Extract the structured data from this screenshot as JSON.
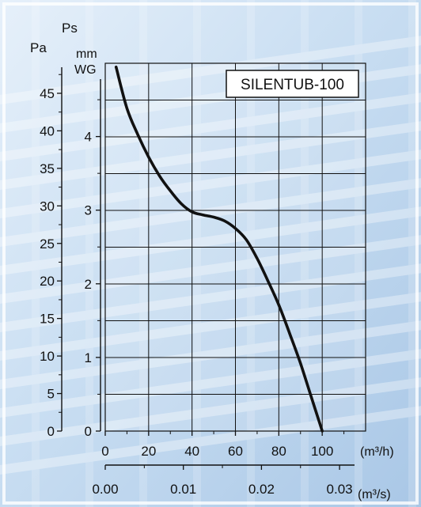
{
  "chart_data": {
    "type": "line",
    "title": "SILENTUB-100",
    "y_primary": {
      "label_top": "Ps",
      "label": "Pa",
      "ticks": [
        "0",
        "5",
        "10",
        "15",
        "20",
        "25",
        "30",
        "35",
        "40",
        "45"
      ],
      "range": [
        0,
        49
      ]
    },
    "y_secondary": {
      "label_line1": "mm",
      "label_line2": "WG",
      "ticks": [
        "0",
        "1",
        "2",
        "3",
        "4"
      ]
    },
    "x_primary": {
      "unit_label": "(m³/h)",
      "ticks": [
        "0",
        "20",
        "40",
        "60",
        "80",
        "100"
      ],
      "range": [
        0,
        120
      ]
    },
    "x_secondary": {
      "unit_label": "(m³/s)",
      "ticks": [
        "0.00",
        "0.01",
        "0.02",
        "0.03"
      ]
    },
    "series": [
      {
        "x": [
          5,
          10,
          15,
          20,
          25,
          30,
          35,
          40,
          45,
          50,
          55,
          60,
          65,
          70,
          75,
          80,
          85,
          90,
          95,
          100
        ],
        "y": [
          48.5,
          43,
          39.5,
          36.5,
          34,
          32,
          30.3,
          29.2,
          28.8,
          28.5,
          28,
          27,
          25.5,
          23,
          20,
          16.8,
          13,
          9,
          4.5,
          0
        ]
      }
    ],
    "grid": true,
    "colors": {
      "line": "#111111",
      "grid": "#111111"
    }
  }
}
